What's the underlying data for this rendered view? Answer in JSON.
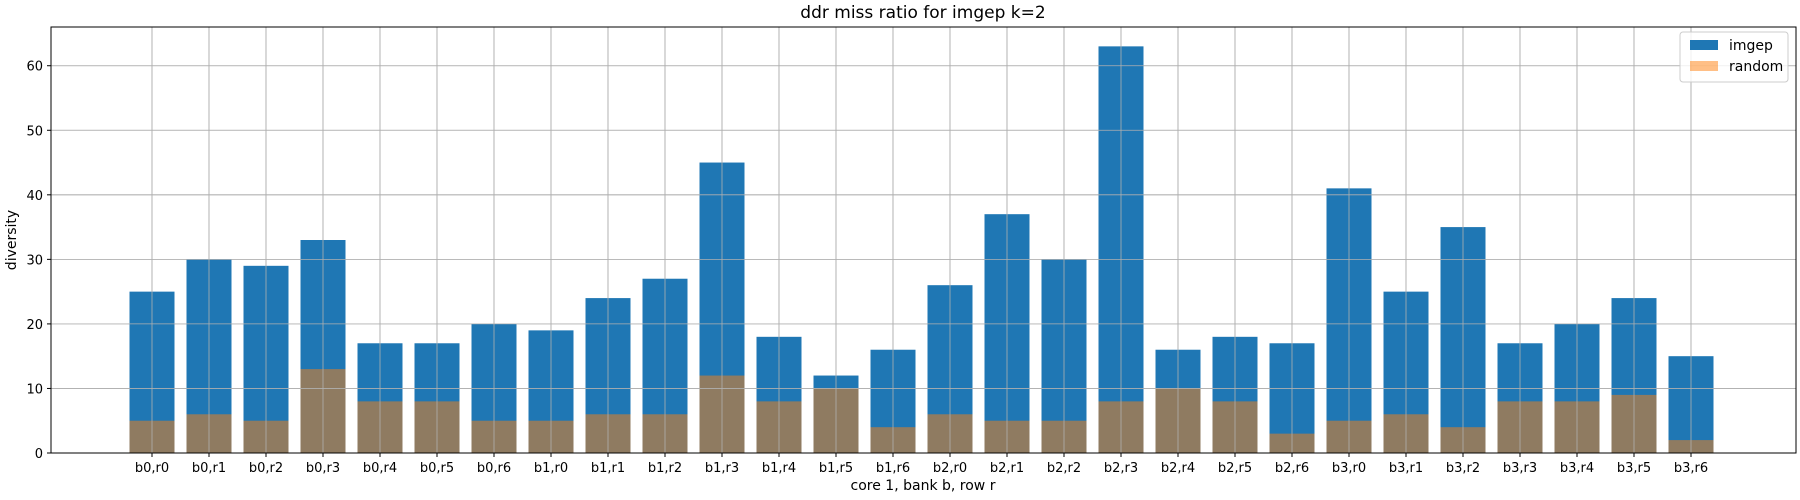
{
  "chart_data": {
    "type": "bar",
    "title": "ddr miss ratio for imgep k=2",
    "xlabel": "core 1, bank b, row r",
    "ylabel": "diversity",
    "ylim": [
      0,
      66
    ],
    "yticks": [
      0,
      10,
      20,
      30,
      40,
      50,
      60
    ],
    "grid": true,
    "legend_position": "top-right",
    "categories": [
      "b0,r0",
      "b0,r1",
      "b0,r2",
      "b0,r3",
      "b0,r4",
      "b0,r5",
      "b0,r6",
      "b1,r0",
      "b1,r1",
      "b1,r2",
      "b1,r3",
      "b1,r4",
      "b1,r5",
      "b1,r6",
      "b2,r0",
      "b2,r1",
      "b2,r2",
      "b2,r3",
      "b2,r4",
      "b2,r5",
      "b2,r6",
      "b3,r0",
      "b3,r1",
      "b3,r2",
      "b3,r3",
      "b3,r4",
      "b3,r5",
      "b3,r6"
    ],
    "series": [
      {
        "name": "imgep",
        "color": "#1f77b4",
        "opacity": 1.0,
        "values": [
          25,
          30,
          29,
          33,
          17,
          17,
          20,
          19,
          24,
          27,
          45,
          18,
          12,
          16,
          26,
          37,
          30,
          63,
          16,
          18,
          17,
          41,
          25,
          35,
          17,
          20,
          24,
          15
        ]
      },
      {
        "name": "random",
        "color": "#ff7f0e",
        "opacity": 0.5,
        "values": [
          5,
          6,
          5,
          13,
          8,
          8,
          5,
          5,
          6,
          6,
          12,
          8,
          10,
          4,
          6,
          5,
          5,
          8,
          10,
          8,
          3,
          5,
          6,
          4,
          8,
          8,
          9,
          2
        ]
      }
    ]
  }
}
